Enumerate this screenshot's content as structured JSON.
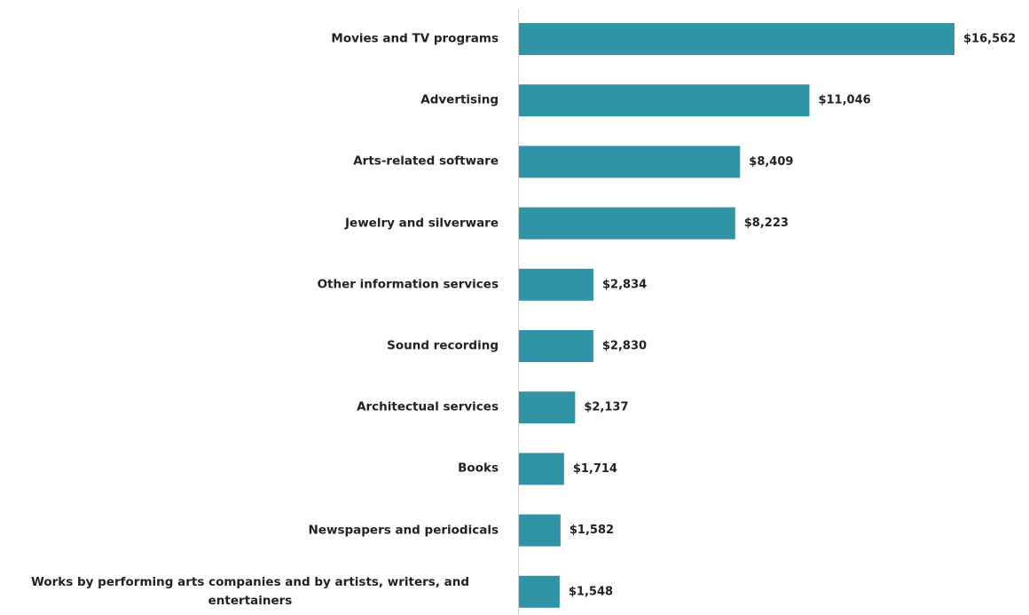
{
  "chart_data": {
    "type": "bar",
    "orientation": "horizontal",
    "categories": [
      "Movies and TV programs",
      "Advertising",
      "Arts-related software",
      "Jewelry and silverware",
      "Other information services",
      "Sound recording",
      "Architectual services",
      "Books",
      "Newspapers and periodicals",
      "Works by performing arts companies and by artists, writers, and entertainers"
    ],
    "values": [
      16562,
      11046,
      8409,
      8223,
      2834,
      2830,
      2137,
      1714,
      1582,
      1548
    ],
    "value_labels": [
      "$16,562",
      "$11,046",
      "$8,409",
      "$8,223",
      "$2,834",
      "$2,830",
      "$2,137",
      "$1,714",
      "$1,582",
      "$1,548"
    ],
    "color": "#3193a6"
  }
}
